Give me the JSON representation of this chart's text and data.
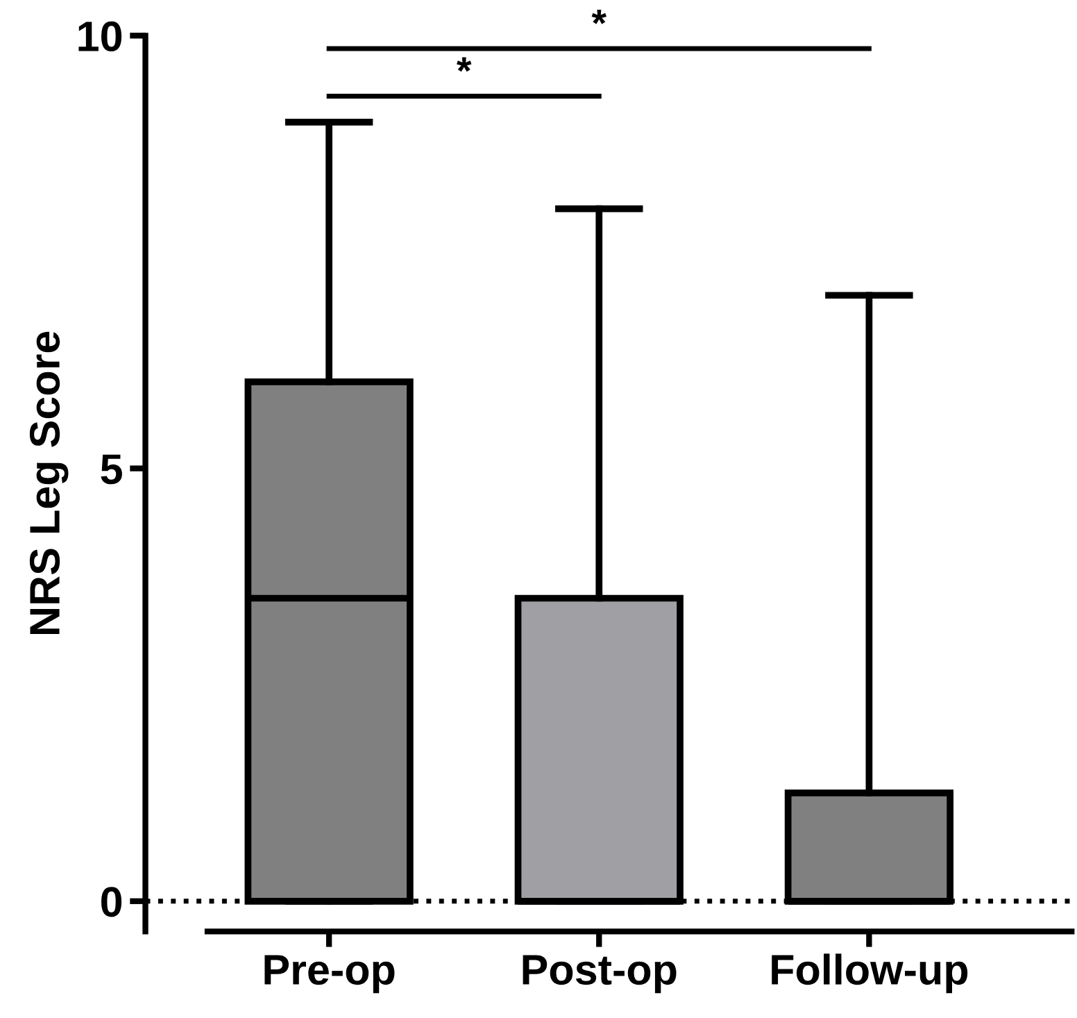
{
  "chart_data": {
    "type": "box",
    "ylabel": "NRS Leg Score",
    "categories": [
      "Pre-op",
      "Post-op",
      "Follow-up"
    ],
    "colors": [
      "#808080",
      "#a0a0a4",
      "#808080"
    ],
    "boxes": [
      {
        "low": 0,
        "q1": 0,
        "median": 3.5,
        "q3": 6,
        "high": 9
      },
      {
        "low": 0,
        "q1": 0,
        "median": 0,
        "q3": 3.5,
        "high": 8
      },
      {
        "low": 0,
        "q1": 0,
        "median": 0,
        "q3": 1.25,
        "high": 7
      }
    ],
    "ylim": [
      -0.35,
      10
    ],
    "yticks": [
      0,
      5,
      10
    ],
    "ref_lines": [
      {
        "axis": "y",
        "value": 0,
        "line_style": "dotted",
        "color": "#000000"
      }
    ],
    "annotations": [
      "*",
      "*"
    ],
    "grid": false,
    "legend": false
  }
}
